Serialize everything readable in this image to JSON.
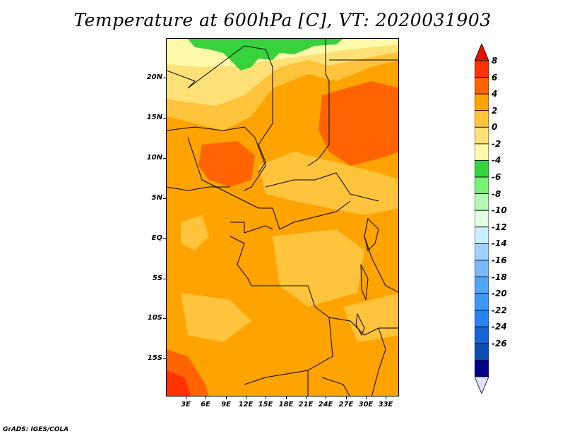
{
  "title": "Temperature at 600hPa [C], VT: 2020031903",
  "credit": "GrADS: IGES/COLA",
  "lat_labels": [
    "20N",
    "15N",
    "10N",
    "5N",
    "EQ",
    "5S",
    "10S",
    "15S"
  ],
  "lon_labels": [
    "3E",
    "6E",
    "9E",
    "12E",
    "15E",
    "18E",
    "21E",
    "24E",
    "27E",
    "30E",
    "33E"
  ],
  "colorbar": {
    "labels": [
      "8",
      "6",
      "4",
      "2",
      "0",
      "-2",
      "-4",
      "-6",
      "-8",
      "-10",
      "-12",
      "-14",
      "-16",
      "-18",
      "-20",
      "-22",
      "-24",
      "-26"
    ],
    "colors": [
      "#e11400",
      "#ff3200",
      "#ff6400",
      "#ffa300",
      "#ffc33c",
      "#ffe178",
      "#fffaaa",
      "#37d23c",
      "#78f073",
      "#b4fab4",
      "#e1ffe1",
      "#c8f0ff",
      "#a0d2ff",
      "#78b9fa",
      "#50a5f5",
      "#3c97f5",
      "#2882f0",
      "#1464d2",
      "#0a50b4",
      "#00008c",
      "#e1e1ff"
    ]
  }
}
